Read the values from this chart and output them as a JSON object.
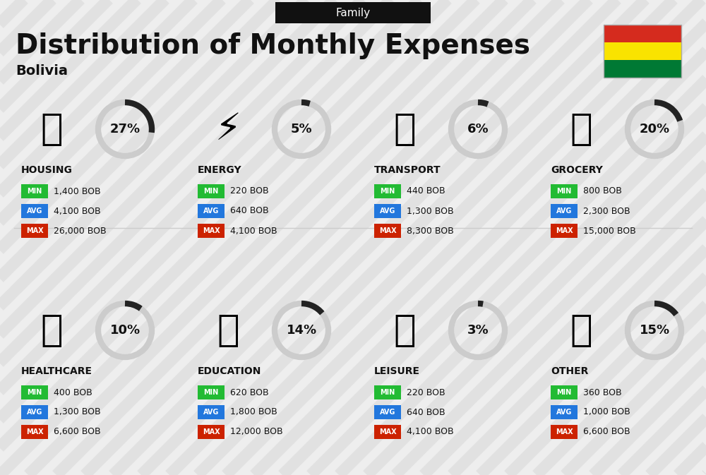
{
  "title": "Distribution of Monthly Expenses",
  "subtitle": "Bolivia",
  "header_label": "Family",
  "bg_color": "#eeeeee",
  "categories": [
    {
      "name": "HOUSING",
      "pct": 27,
      "min": "1,400 BOB",
      "avg": "4,100 BOB",
      "max": "26,000 BOB",
      "row": 0,
      "col": 0
    },
    {
      "name": "ENERGY",
      "pct": 5,
      "min": "220 BOB",
      "avg": "640 BOB",
      "max": "4,100 BOB",
      "row": 0,
      "col": 1
    },
    {
      "name": "TRANSPORT",
      "pct": 6,
      "min": "440 BOB",
      "avg": "1,300 BOB",
      "max": "8,300 BOB",
      "row": 0,
      "col": 2
    },
    {
      "name": "GROCERY",
      "pct": 20,
      "min": "800 BOB",
      "avg": "2,300 BOB",
      "max": "15,000 BOB",
      "row": 0,
      "col": 3
    },
    {
      "name": "HEALTHCARE",
      "pct": 10,
      "min": "400 BOB",
      "avg": "1,300 BOB",
      "max": "6,600 BOB",
      "row": 1,
      "col": 0
    },
    {
      "name": "EDUCATION",
      "pct": 14,
      "min": "620 BOB",
      "avg": "1,800 BOB",
      "max": "12,000 BOB",
      "row": 1,
      "col": 1
    },
    {
      "name": "LEISURE",
      "pct": 3,
      "min": "220 BOB",
      "avg": "640 BOB",
      "max": "4,100 BOB",
      "row": 1,
      "col": 2
    },
    {
      "name": "OTHER",
      "pct": 15,
      "min": "360 BOB",
      "avg": "1,000 BOB",
      "max": "6,600 BOB",
      "row": 1,
      "col": 3
    }
  ],
  "min_color": "#22bb33",
  "avg_color": "#2277dd",
  "max_color": "#cc2200",
  "circle_dark": "#222222",
  "circle_light": "#cccccc",
  "stripe_color": "#d8d8d8",
  "flag_colors": [
    "#d52b1e",
    "#f9e300",
    "#007934"
  ],
  "title_fontsize": 28,
  "subtitle_fontsize": 14,
  "header_fontsize": 11,
  "cat_name_fontsize": 10,
  "pct_fontsize": 13,
  "label_fontsize": 7,
  "value_fontsize": 9
}
